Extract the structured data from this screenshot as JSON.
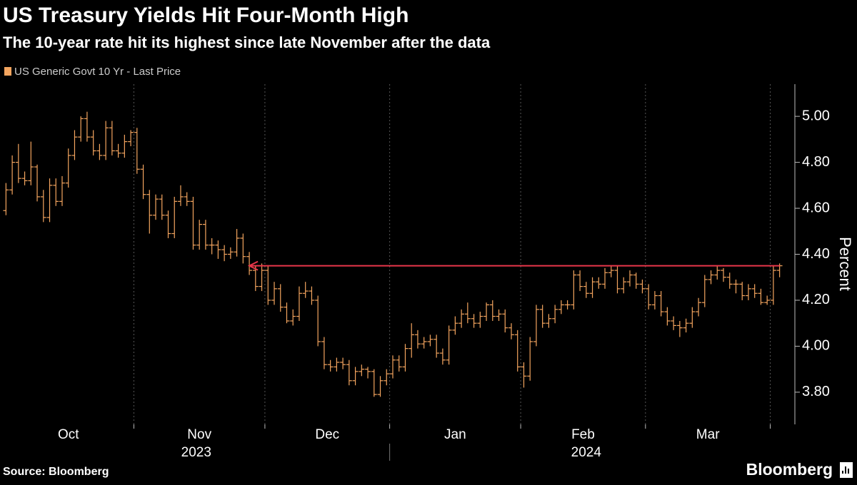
{
  "header": {
    "title": "US Treasury Yields Hit Four-Month High",
    "subtitle": "The 10-year rate hit its highest since late November after the data"
  },
  "chart_data": {
    "type": "ohlc",
    "series": [
      {
        "name": "US Generic Govt 10 Yr - Last Price",
        "color": "#f4a55f"
      }
    ],
    "y_label": "Percent",
    "ylim": [
      3.66,
      5.14
    ],
    "yticks": [
      {
        "value": 3.8,
        "label": "3.80"
      },
      {
        "value": 4,
        "label": "4.00"
      },
      {
        "value": 4.2,
        "label": "4.20"
      },
      {
        "value": 4.4,
        "label": "4.40"
      },
      {
        "value": 4.6,
        "label": "4.60"
      },
      {
        "value": 4.8,
        "label": "4.80"
      },
      {
        "value": 5,
        "label": "5.00"
      }
    ],
    "grid": "x",
    "annotation": {
      "value": 4.35,
      "color": "#e8364a"
    },
    "years": [
      {
        "label": "2023",
        "months": [
          {
            "label": "Oct",
            "bars": [
              [
                4.59,
                4.71,
                4.57,
                4.68
              ],
              [
                4.68,
                4.83,
                4.66,
                4.8
              ],
              [
                4.8,
                4.88,
                4.71,
                4.73
              ],
              [
                4.73,
                4.76,
                4.7,
                4.72
              ],
              [
                4.72,
                4.89,
                4.7,
                4.78
              ],
              [
                4.78,
                4.79,
                4.63,
                4.65
              ],
              [
                4.65,
                4.68,
                4.54,
                4.56
              ],
              [
                4.56,
                4.73,
                4.54,
                4.7
              ],
              [
                4.7,
                4.73,
                4.61,
                4.63
              ],
              [
                4.63,
                4.74,
                4.61,
                4.71
              ],
              [
                4.71,
                4.86,
                4.69,
                4.83
              ],
              [
                4.83,
                4.94,
                4.81,
                4.91
              ],
              [
                4.91,
                5.0,
                4.89,
                4.99
              ],
              [
                4.99,
                5.02,
                4.89,
                4.91
              ],
              [
                4.91,
                4.94,
                4.83,
                4.85
              ],
              [
                4.85,
                4.88,
                4.81,
                4.83
              ],
              [
                4.83,
                4.98,
                4.81,
                4.95
              ],
              [
                4.95,
                4.98,
                4.83,
                4.85
              ],
              [
                4.85,
                4.88,
                4.82,
                4.84
              ],
              [
                4.84,
                4.92,
                4.82,
                4.89
              ],
              [
                4.89,
                4.94,
                4.87,
                4.93
              ]
            ]
          },
          {
            "label": "Nov",
            "bars": [
              [
                4.93,
                4.95,
                4.75,
                4.77
              ],
              [
                4.77,
                4.79,
                4.64,
                4.66
              ],
              [
                4.66,
                4.68,
                4.49,
                4.57
              ],
              [
                4.57,
                4.66,
                4.55,
                4.64
              ],
              [
                4.64,
                4.66,
                4.55,
                4.57
              ],
              [
                4.57,
                4.59,
                4.47,
                4.49
              ],
              [
                4.49,
                4.65,
                4.47,
                4.63
              ],
              [
                4.63,
                4.7,
                4.61,
                4.65
              ],
              [
                4.65,
                4.67,
                4.61,
                4.63
              ],
              [
                4.63,
                4.65,
                4.42,
                4.44
              ],
              [
                4.44,
                4.55,
                4.42,
                4.53
              ],
              [
                4.53,
                4.55,
                4.42,
                4.44
              ],
              [
                4.44,
                4.47,
                4.4,
                4.44
              ],
              [
                4.44,
                4.46,
                4.38,
                4.42
              ],
              [
                4.42,
                4.44,
                4.37,
                4.4
              ],
              [
                4.4,
                4.43,
                4.38,
                4.41
              ],
              [
                4.41,
                4.51,
                4.39,
                4.47
              ],
              [
                4.47,
                4.49,
                4.36,
                4.39
              ],
              [
                4.39,
                4.41,
                4.31,
                4.33
              ],
              [
                4.33,
                4.35,
                4.24,
                4.26
              ],
              [
                4.26,
                4.36,
                4.24,
                4.33
              ]
            ]
          },
          {
            "label": "Dec",
            "bars": [
              [
                4.33,
                4.35,
                4.18,
                4.2
              ],
              [
                4.2,
                4.28,
                4.18,
                4.25
              ],
              [
                4.25,
                4.27,
                4.15,
                4.17
              ],
              [
                4.17,
                4.19,
                4.1,
                4.11
              ],
              [
                4.11,
                4.16,
                4.09,
                4.13
              ],
              [
                4.13,
                4.26,
                4.11,
                4.23
              ],
              [
                4.23,
                4.28,
                4.21,
                4.24
              ],
              [
                4.24,
                4.26,
                4.18,
                4.2
              ],
              [
                4.2,
                4.22,
                4.0,
                4.02
              ],
              [
                4.02,
                4.04,
                3.9,
                3.92
              ],
              [
                3.92,
                3.94,
                3.89,
                3.91
              ],
              [
                3.91,
                3.95,
                3.89,
                3.93
              ],
              [
                3.93,
                3.95,
                3.9,
                3.92
              ],
              [
                3.92,
                3.94,
                3.83,
                3.85
              ],
              [
                3.85,
                3.91,
                3.83,
                3.89
              ],
              [
                3.89,
                3.92,
                3.87,
                3.9
              ],
              [
                3.9,
                3.91,
                3.86,
                3.89
              ],
              [
                3.89,
                3.9,
                3.78,
                3.79
              ],
              [
                3.79,
                3.87,
                3.78,
                3.85
              ],
              [
                3.85,
                3.9,
                3.83,
                3.88
              ]
            ]
          }
        ]
      },
      {
        "label": "2024",
        "months": [
          {
            "label": "Jan",
            "bars": [
              [
                3.88,
                3.96,
                3.86,
                3.94
              ],
              [
                3.94,
                3.96,
                3.89,
                3.91
              ],
              [
                3.91,
                4.01,
                3.89,
                3.99
              ],
              [
                3.99,
                4.1,
                3.95,
                4.05
              ],
              [
                4.05,
                4.07,
                3.99,
                4.01
              ],
              [
                4.01,
                4.04,
                3.99,
                4.02
              ],
              [
                4.02,
                4.05,
                4.0,
                4.03
              ],
              [
                4.03,
                4.05,
                3.95,
                3.97
              ],
              [
                3.97,
                3.99,
                3.92,
                3.94
              ],
              [
                3.94,
                4.09,
                3.92,
                4.07
              ],
              [
                4.07,
                4.13,
                4.05,
                4.1
              ],
              [
                4.1,
                4.16,
                4.08,
                4.14
              ],
              [
                4.14,
                4.19,
                4.1,
                4.12
              ],
              [
                4.12,
                4.14,
                4.08,
                4.1
              ],
              [
                4.1,
                4.15,
                4.08,
                4.13
              ],
              [
                4.13,
                4.19,
                4.11,
                4.18
              ],
              [
                4.18,
                4.2,
                4.11,
                4.13
              ],
              [
                4.13,
                4.16,
                4.11,
                4.14
              ],
              [
                4.14,
                4.16,
                4.06,
                4.08
              ],
              [
                4.08,
                4.1,
                4.03,
                4.05
              ],
              [
                4.05,
                4.07,
                3.89,
                3.91
              ]
            ]
          },
          {
            "label": "Feb",
            "bars": [
              [
                3.91,
                3.93,
                3.82,
                3.87
              ],
              [
                3.87,
                4.04,
                3.85,
                4.02
              ],
              [
                4.02,
                4.18,
                4.0,
                4.16
              ],
              [
                4.16,
                4.18,
                4.08,
                4.1
              ],
              [
                4.1,
                4.14,
                4.08,
                4.12
              ],
              [
                4.12,
                4.18,
                4.1,
                4.16
              ],
              [
                4.16,
                4.2,
                4.14,
                4.18
              ],
              [
                4.18,
                4.2,
                4.16,
                4.18
              ],
              [
                4.18,
                4.33,
                4.16,
                4.31
              ],
              [
                4.31,
                4.33,
                4.24,
                4.26
              ],
              [
                4.26,
                4.28,
                4.21,
                4.23
              ],
              [
                4.23,
                4.3,
                4.21,
                4.28
              ],
              [
                4.28,
                4.3,
                4.25,
                4.27
              ],
              [
                4.27,
                4.34,
                4.25,
                4.32
              ],
              [
                4.32,
                4.35,
                4.3,
                4.33
              ],
              [
                4.33,
                4.35,
                4.23,
                4.25
              ],
              [
                4.25,
                4.3,
                4.23,
                4.28
              ],
              [
                4.28,
                4.33,
                4.26,
                4.31
              ],
              [
                4.31,
                4.32,
                4.25,
                4.27
              ],
              [
                4.27,
                4.29,
                4.23,
                4.25
              ]
            ]
          },
          {
            "label": "Mar",
            "bars": [
              [
                4.25,
                4.27,
                4.16,
                4.18
              ],
              [
                4.18,
                4.24,
                4.16,
                4.22
              ],
              [
                4.22,
                4.24,
                4.13,
                4.15
              ],
              [
                4.15,
                4.17,
                4.09,
                4.11
              ],
              [
                4.11,
                4.13,
                4.07,
                4.09
              ],
              [
                4.09,
                4.11,
                4.04,
                4.08
              ],
              [
                4.08,
                4.12,
                4.06,
                4.1
              ],
              [
                4.1,
                4.17,
                4.08,
                4.15
              ],
              [
                4.15,
                4.21,
                4.13,
                4.19
              ],
              [
                4.19,
                4.31,
                4.17,
                4.29
              ],
              [
                4.29,
                4.33,
                4.27,
                4.31
              ],
              [
                4.31,
                4.35,
                4.29,
                4.33
              ],
              [
                4.33,
                4.34,
                4.28,
                4.3
              ],
              [
                4.3,
                4.32,
                4.25,
                4.27
              ],
              [
                4.27,
                4.29,
                4.23,
                4.27
              ],
              [
                4.27,
                4.28,
                4.2,
                4.22
              ],
              [
                4.22,
                4.27,
                4.2,
                4.25
              ],
              [
                4.25,
                4.27,
                4.21,
                4.23
              ],
              [
                4.23,
                4.25,
                4.18,
                4.19
              ],
              [
                4.19,
                4.22,
                4.18,
                4.2
              ]
            ]
          },
          {
            "label": null,
            "bars": [
              [
                4.2,
                4.35,
                4.18,
                4.33
              ],
              [
                4.33,
                4.36,
                4.3,
                4.35
              ]
            ]
          }
        ]
      }
    ]
  },
  "footer": {
    "source": "Source: Bloomberg",
    "logo": "Bloomberg"
  }
}
